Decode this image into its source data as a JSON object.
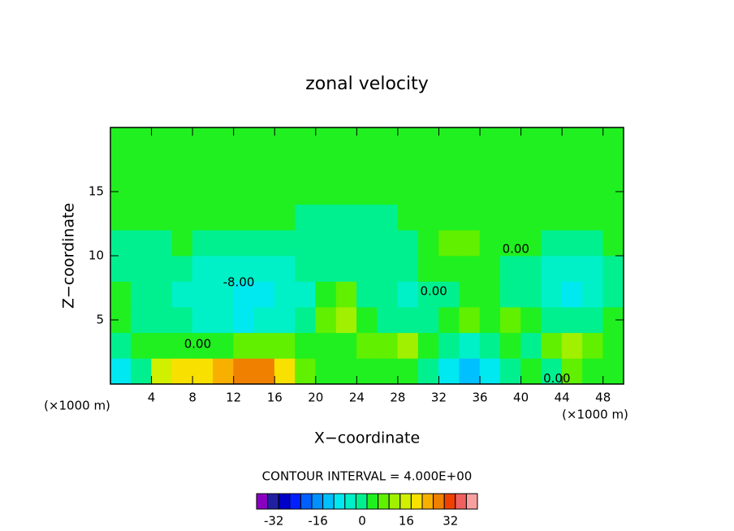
{
  "chart_data": {
    "type": "contour",
    "title": "zonal velocity",
    "x_label": "X−coordinate",
    "y_label": "Z−coordinate",
    "x_unit_left": "(×1000 m)",
    "x_unit_right": "(×1000 m)",
    "contour_interval_text": "CONTOUR INTERVAL = 4.000E+00",
    "xlim": [
      0,
      50
    ],
    "ylim": [
      0,
      20
    ],
    "xticks": [
      4,
      8,
      12,
      16,
      20,
      24,
      28,
      32,
      36,
      40,
      44,
      48
    ],
    "yticks": [
      5,
      10,
      15
    ],
    "x": [
      1,
      3,
      5,
      7,
      9,
      11,
      13,
      15,
      17,
      19,
      21,
      23,
      25,
      27,
      29,
      31,
      33,
      35,
      37,
      39,
      41,
      43,
      45,
      47,
      49
    ],
    "y": [
      1,
      3,
      5,
      7,
      9,
      11,
      13,
      15,
      17,
      19
    ],
    "z": [
      [
        -10,
        -2,
        14,
        18,
        18,
        22,
        26,
        26,
        18,
        6,
        2,
        2,
        2,
        2,
        2,
        -2,
        -10,
        -14,
        -10,
        -2,
        2,
        -2,
        6,
        2,
        2
      ],
      [
        -2,
        2,
        2,
        2,
        2,
        2,
        6,
        6,
        6,
        2,
        2,
        2,
        6,
        6,
        10,
        2,
        -2,
        -6,
        -2,
        2,
        -2,
        6,
        10,
        6,
        2
      ],
      [
        2,
        -2,
        -2,
        -2,
        -6,
        -6,
        -10,
        -6,
        -6,
        -2,
        6,
        10,
        2,
        -2,
        -2,
        -2,
        2,
        6,
        2,
        6,
        2,
        -2,
        -2,
        -2,
        2
      ],
      [
        2,
        -2,
        -2,
        -6,
        -6,
        -6,
        -10,
        -10,
        -6,
        -6,
        2,
        6,
        -2,
        -2,
        -6,
        -2,
        -2,
        2,
        2,
        -2,
        -2,
        -6,
        -10,
        -6,
        -2
      ],
      [
        -2,
        -2,
        -2,
        -2,
        -6,
        -6,
        -6,
        -6,
        -6,
        -2,
        -2,
        -2,
        -2,
        -2,
        -2,
        2,
        2,
        2,
        2,
        -2,
        -2,
        -6,
        -6,
        -6,
        -2
      ],
      [
        -2,
        -2,
        -2,
        2,
        -2,
        -2,
        -2,
        -2,
        -2,
        -2,
        -2,
        -2,
        -2,
        -2,
        -2,
        2,
        6,
        6,
        2,
        2,
        2,
        -2,
        -2,
        -2,
        2
      ],
      [
        2,
        2,
        2,
        2,
        2,
        2,
        2,
        2,
        2,
        -2,
        -2,
        -2,
        -2,
        -2,
        2,
        2,
        2,
        2,
        2,
        2,
        2,
        2,
        2,
        2,
        2
      ],
      [
        2,
        2,
        2,
        2,
        2,
        2,
        2,
        2,
        2,
        2,
        2,
        2,
        2,
        2,
        2,
        2,
        2,
        2,
        2,
        2,
        2,
        2,
        2,
        2,
        2
      ],
      [
        2,
        2,
        2,
        2,
        2,
        2,
        2,
        2,
        2,
        2,
        2,
        2,
        2,
        2,
        2,
        2,
        2,
        2,
        2,
        2,
        2,
        2,
        2,
        2,
        2
      ],
      [
        2,
        2,
        2,
        2,
        2,
        2,
        2,
        2,
        2,
        2,
        2,
        2,
        2,
        2,
        2,
        2,
        2,
        2,
        2,
        2,
        2,
        2,
        2,
        2,
        2
      ]
    ],
    "levels": [
      -40,
      -36,
      -32,
      -28,
      -24,
      -20,
      -16,
      -12,
      -8,
      -4,
      0,
      4,
      8,
      12,
      16,
      20,
      24,
      28,
      32,
      36,
      40
    ],
    "colors": [
      "#8a00c0",
      "#2020a0",
      "#0000c8",
      "#0020ff",
      "#0060ff",
      "#0090ff",
      "#00c0ff",
      "#00e8f0",
      "#00f0c8",
      "#00f090",
      "#20f020",
      "#60f000",
      "#a0f000",
      "#d0f000",
      "#f8e000",
      "#f8b000",
      "#f08000",
      "#f04000",
      "#f06060",
      "#f8a0a0"
    ],
    "colorbar_ticks": [
      -32,
      -16,
      0,
      16,
      32
    ],
    "contour_labels": [
      {
        "text": "-8.00",
        "x": 12.5,
        "y": 7.9
      },
      {
        "text": "0.00",
        "x": 8.5,
        "y": 3.1
      },
      {
        "text": "0.00",
        "x": 31.5,
        "y": 7.2
      },
      {
        "text": "0.00",
        "x": 39.5,
        "y": 10.5
      },
      {
        "text": "0.00",
        "x": 43.5,
        "y": 0.4
      }
    ]
  }
}
